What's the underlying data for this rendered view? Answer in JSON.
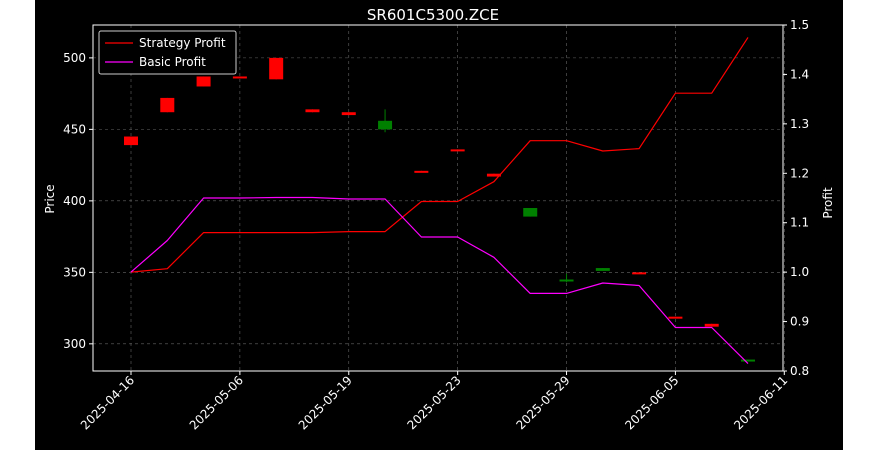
{
  "chart_data": {
    "type": "candlestick_line",
    "title": "SR601C5300.ZCE",
    "xlabel": "",
    "ylabel_left": "Price",
    "ylabel_right": "Profit",
    "ylim_left": [
      281,
      523
    ],
    "ylim_right": [
      0.8,
      1.5
    ],
    "grid": true,
    "legend_position": "top-left",
    "x_ticks": [
      "2025-04-16",
      "2025-05-06",
      "2025-05-19",
      "2025-05-23",
      "2025-05-29",
      "2025-06-05",
      "2025-06-11"
    ],
    "y_ticks_left": [
      300,
      350,
      400,
      450,
      500
    ],
    "y_ticks_right": [
      0.8,
      0.9,
      1.0,
      1.1,
      1.2,
      1.3,
      1.4,
      1.5
    ],
    "candles": [
      {
        "open": 439,
        "close": 445,
        "low": 439,
        "high": 445,
        "up": false
      },
      {
        "open": 462,
        "close": 472,
        "low": 462,
        "high": 472,
        "up": false
      },
      {
        "open": 480,
        "close": 487,
        "low": 480,
        "high": 487,
        "up": false
      },
      {
        "open": 486,
        "close": 487,
        "low": 486,
        "high": 487,
        "up": false
      },
      {
        "open": 485,
        "close": 500,
        "low": 485,
        "high": 500,
        "up": false
      },
      {
        "open": 462,
        "close": 464,
        "low": 462,
        "high": 464,
        "up": false
      },
      {
        "open": 460,
        "close": 462,
        "low": 460,
        "high": 462,
        "up": false
      },
      {
        "open": 450,
        "close": 456,
        "low": 448,
        "high": 464,
        "up": true
      },
      {
        "open": 420,
        "close": 421,
        "low": 420,
        "high": 421,
        "up": false
      },
      {
        "open": 435,
        "close": 436,
        "low": 435,
        "high": 436,
        "up": false
      },
      {
        "open": 417,
        "close": 419,
        "low": 417,
        "high": 419,
        "up": false
      },
      {
        "open": 389,
        "close": 395,
        "low": 389,
        "high": 395,
        "up": true
      },
      {
        "open": 344,
        "close": 345,
        "low": 343,
        "high": 349,
        "up": true
      },
      {
        "open": 351,
        "close": 353,
        "low": 351,
        "high": 353,
        "up": true
      },
      {
        "open": 349,
        "close": 350,
        "low": 349,
        "high": 350,
        "up": false
      },
      {
        "open": 318,
        "close": 319,
        "low": 318,
        "high": 319,
        "up": false
      },
      {
        "open": 312,
        "close": 314,
        "low": 312,
        "high": 314,
        "up": false
      },
      {
        "open": 288,
        "close": 289,
        "low": 288,
        "high": 289,
        "up": true
      }
    ],
    "series": [
      {
        "name": "Strategy Profit",
        "color": "#ff0000",
        "values": [
          1.0,
          1.007,
          1.08,
          1.08,
          1.08,
          1.08,
          1.082,
          1.082,
          1.143,
          1.143,
          1.183,
          1.266,
          1.266,
          1.245,
          1.25,
          1.362,
          1.362,
          1.475
        ]
      },
      {
        "name": "Basic Profit",
        "color": "#ff00ff",
        "values": [
          1.0,
          1.064,
          1.15,
          1.15,
          1.151,
          1.151,
          1.148,
          1.148,
          1.071,
          1.071,
          1.03,
          0.957,
          0.957,
          0.978,
          0.973,
          0.888,
          0.888,
          0.815
        ]
      }
    ],
    "colors": {
      "up": "#008000",
      "down": "#ff0000",
      "background": "#000000",
      "axes": "#ffffff",
      "grid": "#666666"
    }
  }
}
